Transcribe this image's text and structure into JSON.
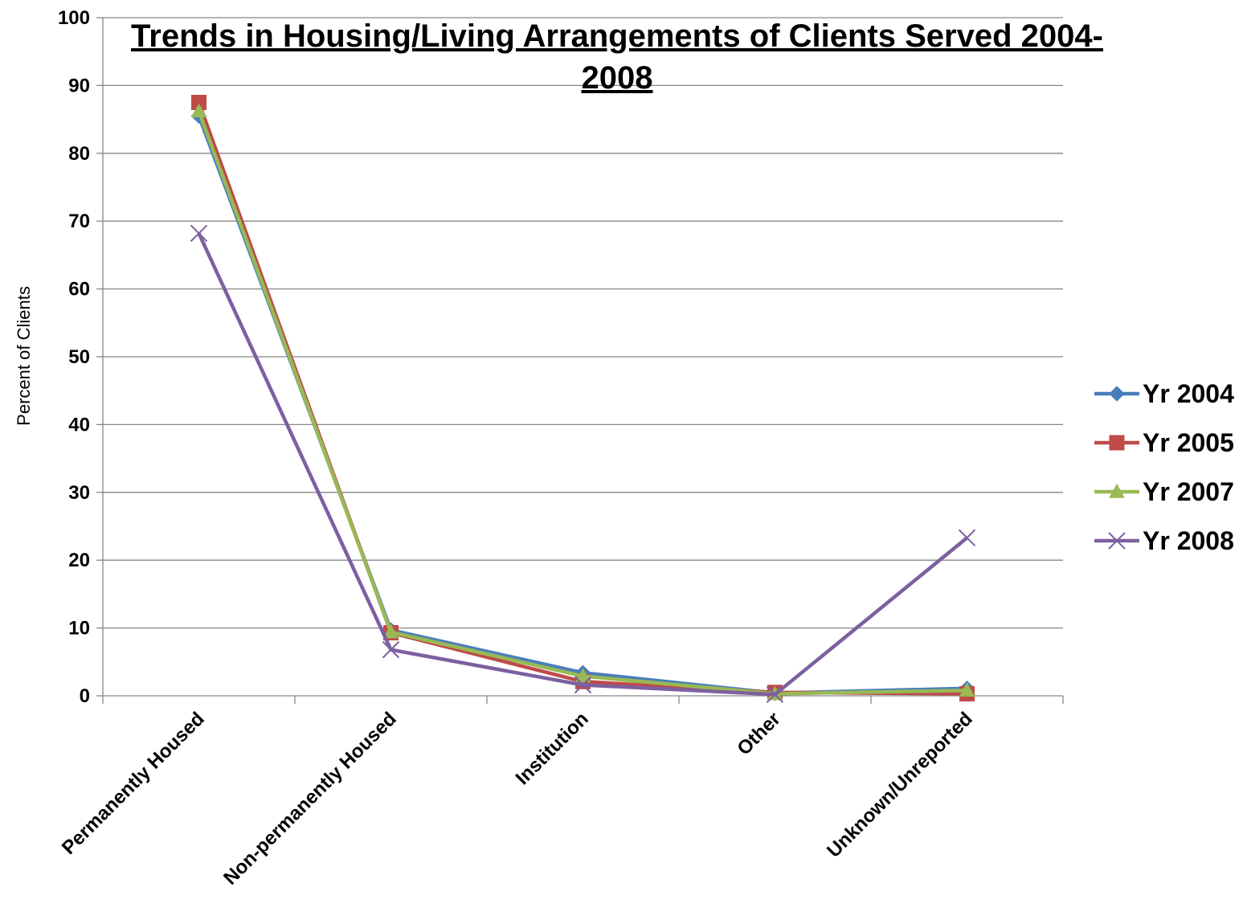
{
  "chart_data": {
    "type": "line",
    "title_line1": "Trends in Housing/Living Arrangements of Clients Served 2004-",
    "title_line2": "2008",
    "xlabel": "",
    "ylabel": "Percent of Clients",
    "ylim": [
      0,
      100
    ],
    "yticks": [
      "0",
      "10",
      "20",
      "30",
      "40",
      "50",
      "60",
      "70",
      "80",
      "90",
      "100"
    ],
    "grid": true,
    "legend_position": "right",
    "categories": [
      "Permanently Housed",
      "Non-permanently Housed",
      "Institution",
      "Other",
      "Unknown/Unreported"
    ],
    "series": [
      {
        "name": "Yr 2004",
        "color": "#4A7EBB",
        "marker": "diamond",
        "values": [
          85.5,
          9.7,
          3.4,
          0.4,
          1.1
        ]
      },
      {
        "name": "Yr 2005",
        "color": "#BE4B48",
        "marker": "square",
        "values": [
          87.5,
          9.3,
          2.1,
          0.5,
          0.3
        ]
      },
      {
        "name": "Yr 2007",
        "color": "#98B954",
        "marker": "triangle",
        "values": [
          86.2,
          9.4,
          2.9,
          0.3,
          0.8
        ]
      },
      {
        "name": "Yr 2008",
        "color": "#7D60A0",
        "marker": "x",
        "values": [
          68.2,
          6.8,
          1.6,
          0.2,
          23.3
        ]
      }
    ]
  }
}
